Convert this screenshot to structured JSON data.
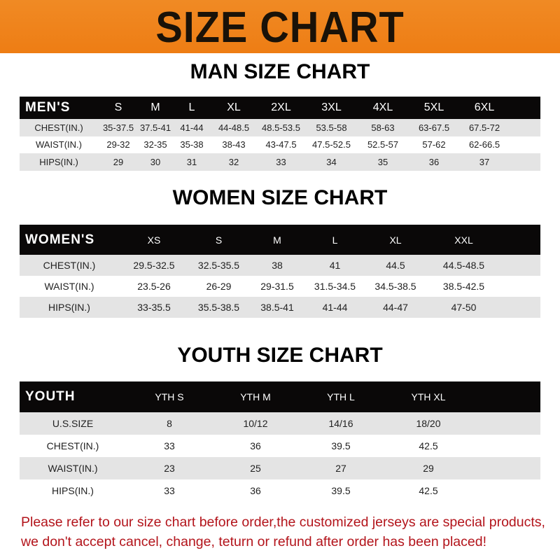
{
  "banner": {
    "title": "SIZE CHART",
    "color": "#ef8419"
  },
  "men": {
    "title": "MAN SIZE CHART",
    "header": [
      "MEN'S",
      "S",
      "M",
      "L",
      "XL",
      "2XL",
      "3XL",
      "4XL",
      "5XL",
      "6XL"
    ],
    "rows": [
      [
        "CHEST(IN.)",
        "35-37.5",
        "37.5-41",
        "41-44",
        "44-48.5",
        "48.5-53.5",
        "53.5-58",
        "58-63",
        "63-67.5",
        "67.5-72"
      ],
      [
        "WAIST(IN.)",
        "29-32",
        "32-35",
        "35-38",
        "38-43",
        "43-47.5",
        "47.5-52.5",
        "52.5-57",
        "57-62",
        "62-66.5"
      ],
      [
        "HIPS(IN.)",
        "29",
        "30",
        "31",
        "32",
        "33",
        "34",
        "35",
        "36",
        "37"
      ]
    ]
  },
  "women": {
    "title": "WOMEN SIZE CHART",
    "header": [
      "WOMEN'S",
      "XS",
      "S",
      "M",
      "L",
      "XL",
      "XXL"
    ],
    "rows": [
      [
        "CHEST(IN.)",
        "29.5-32.5",
        "32.5-35.5",
        "38",
        "41",
        "44.5",
        "44.5-48.5"
      ],
      [
        "WAIST(IN.)",
        "23.5-26",
        "26-29",
        "29-31.5",
        "31.5-34.5",
        "34.5-38.5",
        "38.5-42.5"
      ],
      [
        "HIPS(IN.)",
        "33-35.5",
        "35.5-38.5",
        "38.5-41",
        "41-44",
        "44-47",
        "47-50"
      ]
    ]
  },
  "youth": {
    "title": "YOUTH SIZE CHART",
    "header": [
      "YOUTH",
      "YTH S",
      "YTH M",
      "YTH L",
      "YTH XL"
    ],
    "rows": [
      [
        "U.S.SIZE",
        "8",
        "10/12",
        "14/16",
        "18/20"
      ],
      [
        "CHEST(IN.)",
        "33",
        "36",
        "39.5",
        "42.5"
      ],
      [
        "WAIST(IN.)",
        "23",
        "25",
        "27",
        "29"
      ],
      [
        "HIPS(IN.)",
        "33",
        "36",
        "39.5",
        "42.5"
      ]
    ]
  },
  "notice": {
    "line1": "Please refer to our size chart before order,the customized jerseys are special products,",
    "line2": "we don't accept cancel, change, teturn or refund after order has been placed!",
    "color": "#b3141b"
  }
}
